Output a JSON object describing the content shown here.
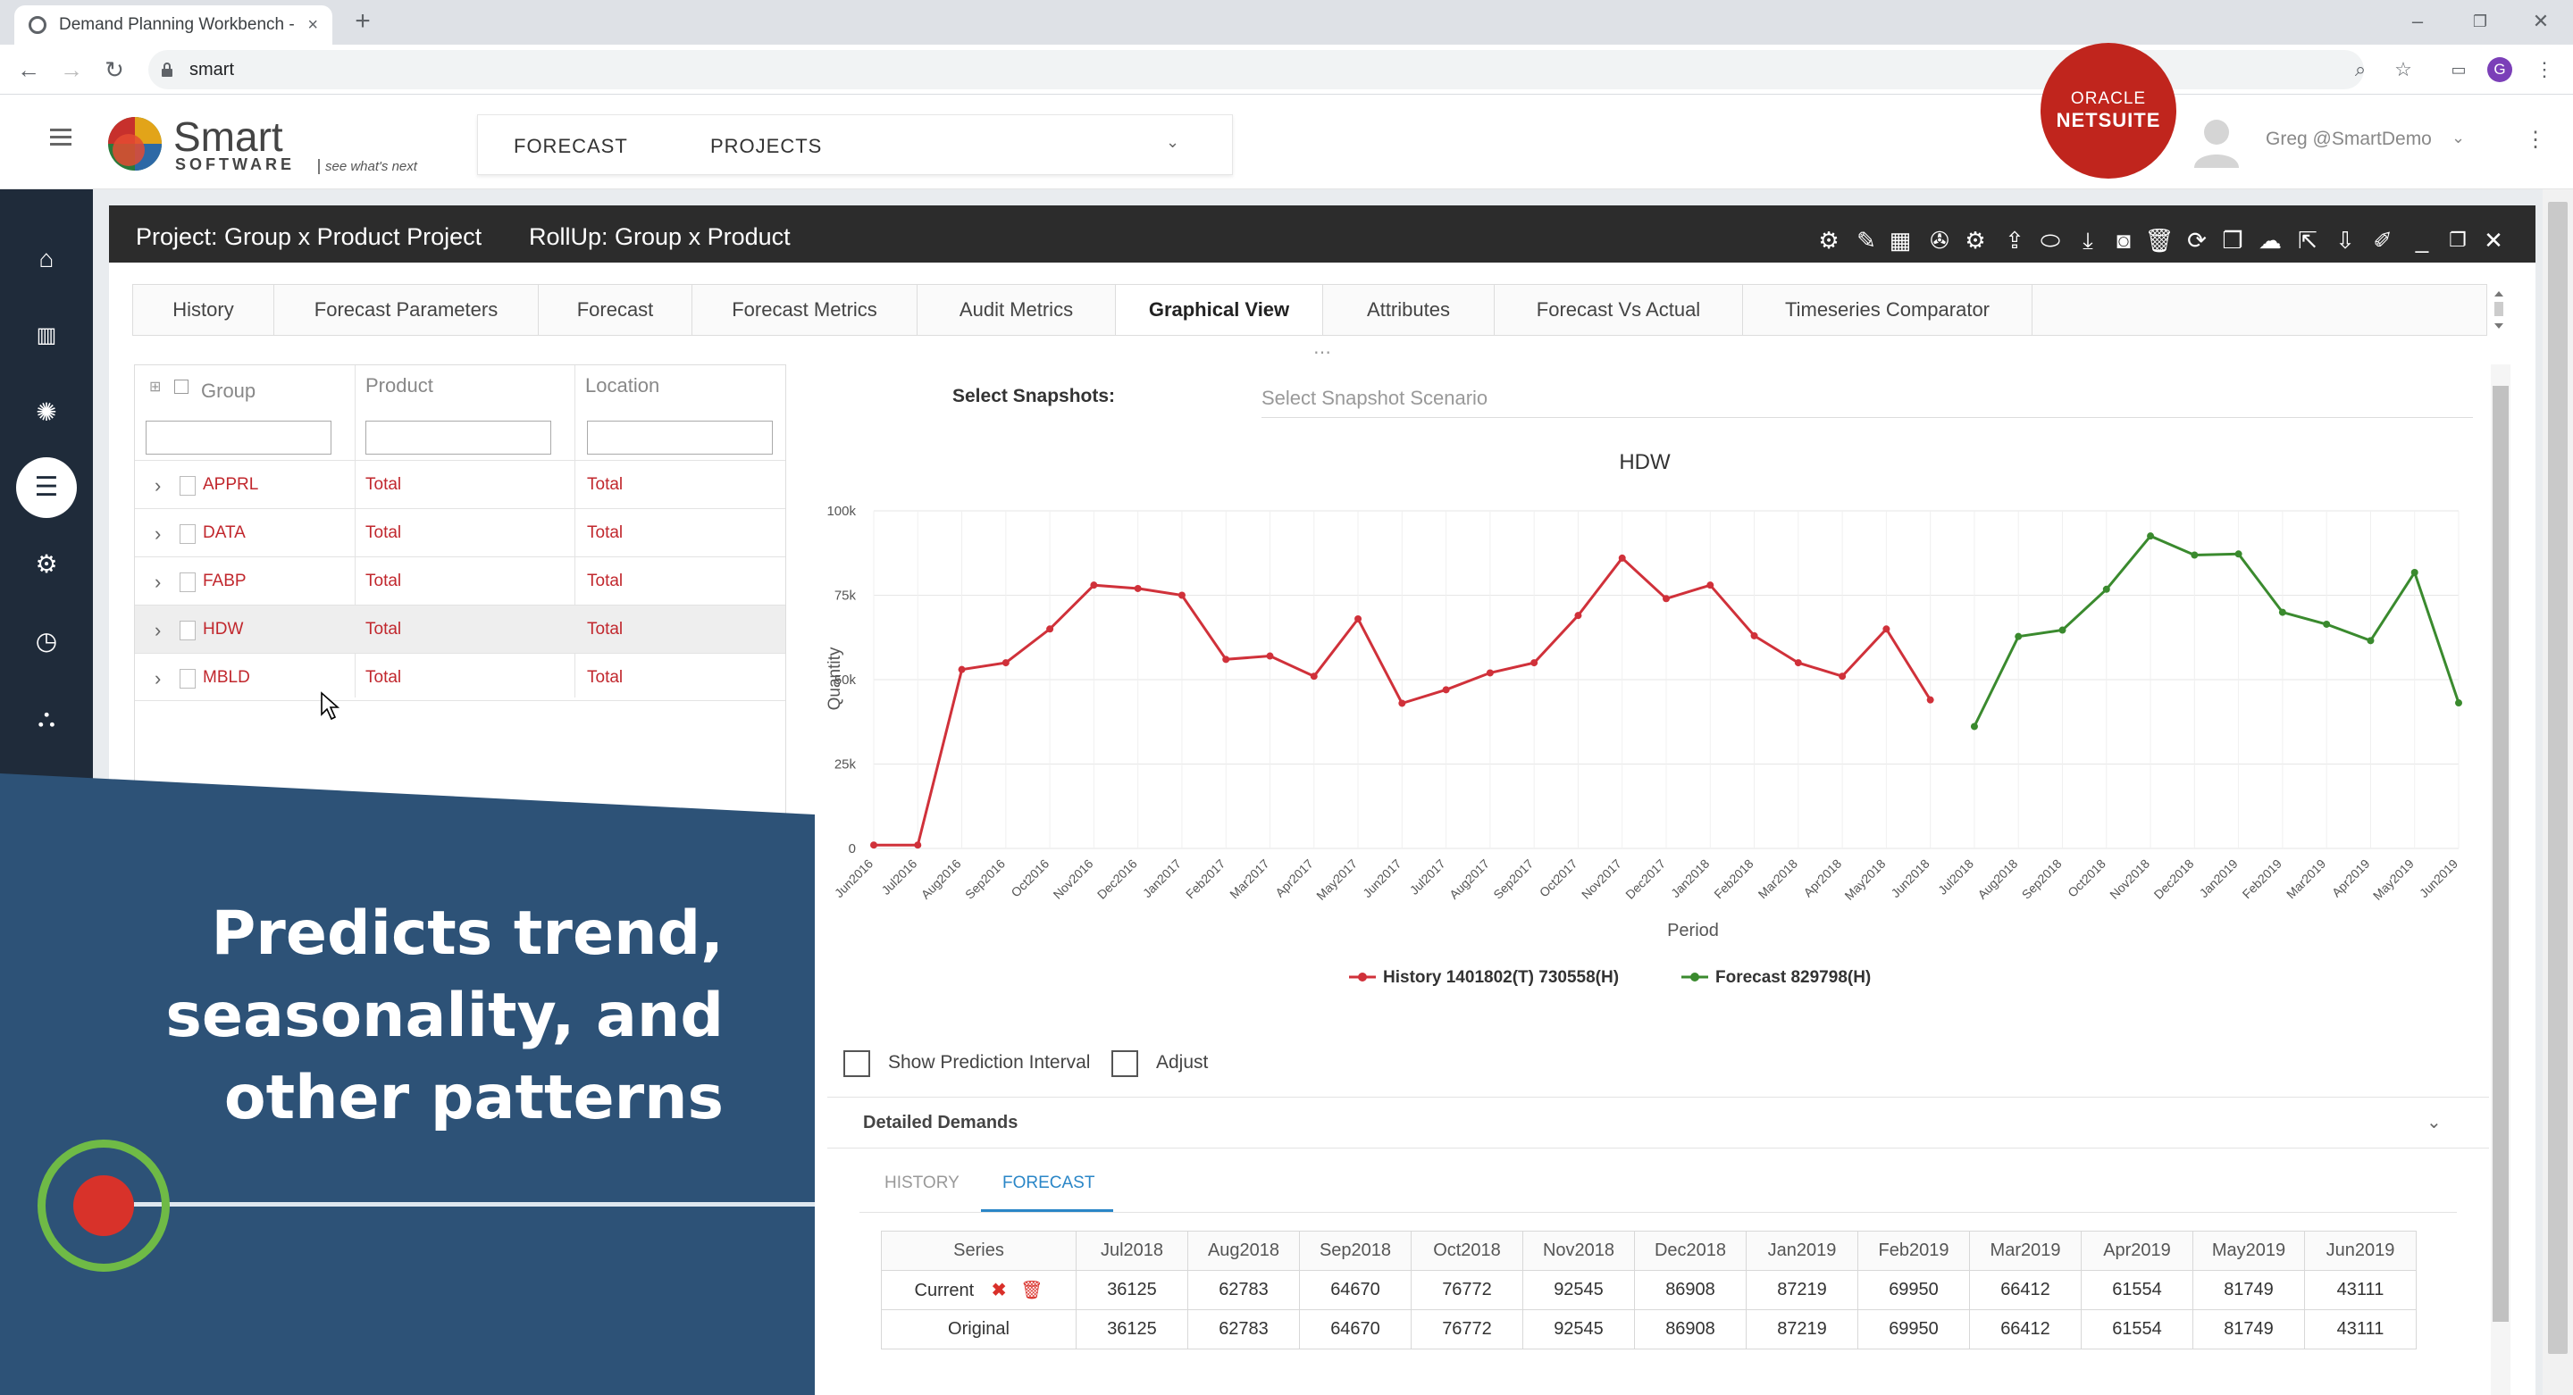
{
  "browser": {
    "tab_title": "Demand Planning Workbench - S",
    "tab_close": "×",
    "new_tab": "+",
    "address": "smart",
    "profile_initial": "G",
    "window_min": "–",
    "window_restore": "❐",
    "window_close": "✕"
  },
  "header": {
    "logo_word": "Smart",
    "logo_sub": "SOFTWARE",
    "logo_tag": "see what's next",
    "menu": [
      "FORECAST",
      "PROJECTS"
    ],
    "oracle_line1": "ORACLE",
    "oracle_line2": "NETSUITE",
    "username": "Greg @SmartDemo"
  },
  "panel": {
    "project": "Project: Group x Product Project",
    "rollup": "RollUp: Group x Product"
  },
  "tabs": [
    "History",
    "Forecast Parameters",
    "Forecast",
    "Forecast Metrics",
    "Audit Metrics",
    "Graphical View",
    "Attributes",
    "Forecast Vs Actual",
    "Timeseries Comparator"
  ],
  "active_tab": "Graphical View",
  "grid": {
    "headers": [
      "Group",
      "Product",
      "Location"
    ],
    "rows": [
      {
        "group": "APPRL",
        "product": "Total",
        "location": "Total"
      },
      {
        "group": "DATA",
        "product": "Total",
        "location": "Total"
      },
      {
        "group": "FABP",
        "product": "Total",
        "location": "Total"
      },
      {
        "group": "HDW",
        "product": "Total",
        "location": "Total"
      },
      {
        "group": "MBLD",
        "product": "Total",
        "location": "Total"
      }
    ]
  },
  "snapshots": {
    "label": "Select Snapshots:",
    "placeholder": "Select Snapshot Scenario"
  },
  "chart_data": {
    "type": "line",
    "title": "HDW",
    "xlabel": "Period",
    "ylabel": "Quantity",
    "ylim": [
      0,
      100000
    ],
    "yticks": [
      "0",
      "25k",
      "50k",
      "75k",
      "100k"
    ],
    "grid": true,
    "legend": "bottom",
    "categories": [
      "Jun2016",
      "Jul2016",
      "Aug2016",
      "Sep2016",
      "Oct2016",
      "Nov2016",
      "Dec2016",
      "Jan2017",
      "Feb2017",
      "Mar2017",
      "Apr2017",
      "May2017",
      "Jun2017",
      "Jul2017",
      "Aug2017",
      "Sep2017",
      "Oct2017",
      "Nov2017",
      "Dec2017",
      "Jan2018",
      "Feb2018",
      "Mar2018",
      "Apr2018",
      "May2018",
      "Jun2018",
      "Jul2018",
      "Aug2018",
      "Sep2018",
      "Oct2018",
      "Nov2018",
      "Dec2018",
      "Jan2019",
      "Feb2019",
      "Mar2019",
      "Apr2019",
      "May2019",
      "Jun2019"
    ],
    "series": [
      {
        "name": "History 1401802(T) 730558(H)",
        "color": "#d0313a",
        "values": [
          1000,
          1000,
          53000,
          55000,
          65000,
          78000,
          77000,
          75000,
          56000,
          57000,
          51000,
          68000,
          43000,
          47000,
          52000,
          55000,
          69000,
          86000,
          74000,
          78000,
          63000,
          55000,
          51000,
          65000,
          44000,
          null,
          null,
          null,
          null,
          null,
          null,
          null,
          null,
          null,
          null,
          null,
          null
        ]
      },
      {
        "name": "Forecast 829798(H)",
        "color": "#3a8a2e",
        "values": [
          null,
          null,
          null,
          null,
          null,
          null,
          null,
          null,
          null,
          null,
          null,
          null,
          null,
          null,
          null,
          null,
          null,
          null,
          null,
          null,
          null,
          null,
          null,
          null,
          null,
          36125,
          62783,
          64670,
          76772,
          92545,
          86908,
          87219,
          69950,
          66412,
          61554,
          81749,
          43111
        ]
      }
    ]
  },
  "options": {
    "prediction_interval": "Show Prediction Interval",
    "adjust": "Adjust"
  },
  "detailed": {
    "title": "Detailed Demands",
    "subtabs": [
      "HISTORY",
      "FORECAST"
    ],
    "active_subtab": "FORECAST",
    "columns": [
      "Series",
      "Jul2018",
      "Aug2018",
      "Sep2018",
      "Oct2018",
      "Nov2018",
      "Dec2018",
      "Jan2019",
      "Feb2019",
      "Mar2019",
      "Apr2019",
      "May2019",
      "Jun2019"
    ],
    "rows": [
      {
        "series": "Current",
        "values": [
          "36125",
          "62783",
          "64670",
          "76772",
          "92545",
          "86908",
          "87219",
          "69950",
          "66412",
          "61554",
          "81749",
          "43111"
        ]
      },
      {
        "series": "Original",
        "values": [
          "36125",
          "62783",
          "64670",
          "76772",
          "92545",
          "86908",
          "87219",
          "69950",
          "66412",
          "61554",
          "81749",
          "43111"
        ]
      }
    ]
  },
  "overlay": {
    "lines": [
      "Predicts trend,",
      "seasonality, and",
      "other patterns"
    ],
    "bg_color": "#2d5277",
    "ring_color": "#6fba46",
    "dot_color": "#d8322a"
  }
}
